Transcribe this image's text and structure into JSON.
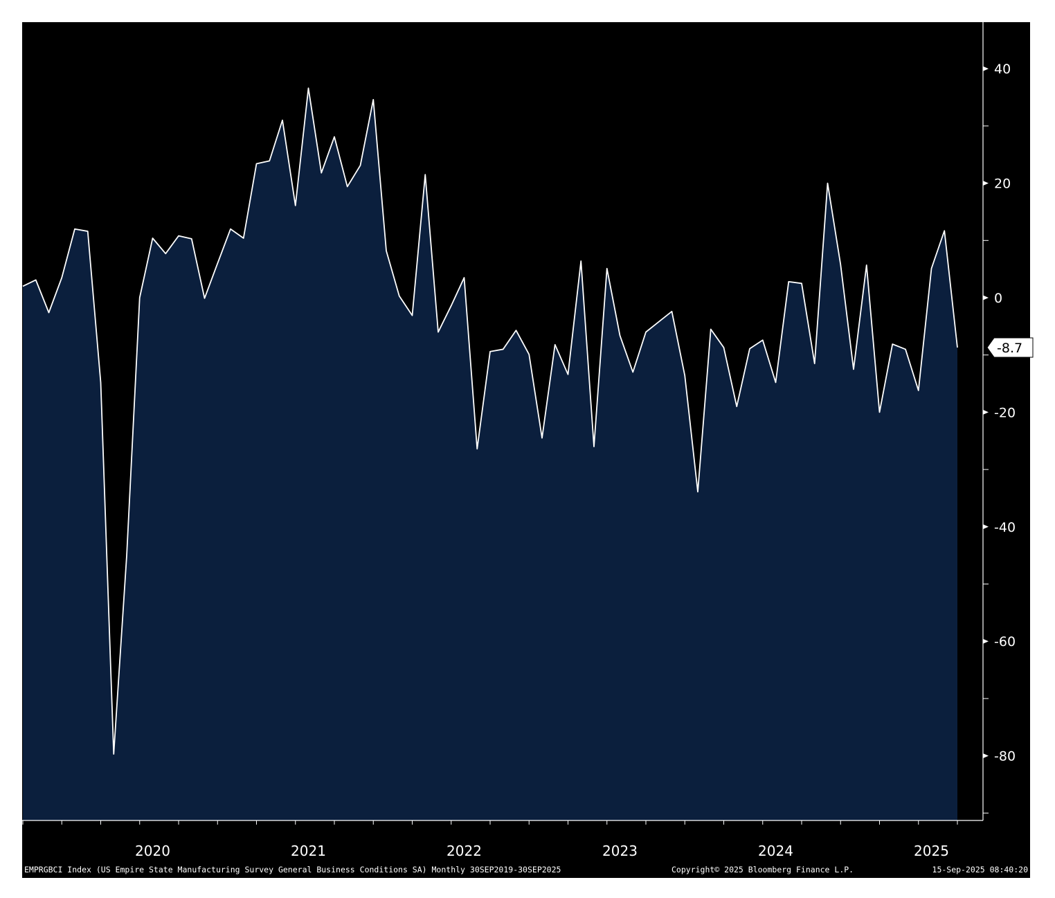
{
  "chart_data": {
    "type": "area",
    "frequency": "Monthly",
    "x_start": "2019-09",
    "x_end": "2025-09",
    "ylim": [
      -91,
      48
    ],
    "yticks": [
      40,
      20,
      0,
      -20,
      -40,
      -60,
      -80
    ],
    "year_labels": [
      "2020",
      "2021",
      "2022",
      "2023",
      "2024",
      "2025"
    ],
    "last_value_label": "-8.7",
    "grid": false,
    "legend": "none",
    "colors": {
      "background": "#000000",
      "fill": "#0b1f3d",
      "line": "#ffffff",
      "plot_border": "#ffffff"
    },
    "series": [
      {
        "values": [
          2.0,
          3.1,
          -2.6,
          3.5,
          12.0,
          11.6,
          -14.8,
          -79.7,
          -45.1,
          0.0,
          10.4,
          7.7,
          10.8,
          10.3,
          -0.1,
          6.0,
          12.0,
          10.4,
          23.4,
          23.9,
          31.0,
          16.1,
          36.6,
          21.8,
          28.1,
          19.4,
          23.1,
          34.6,
          8.2,
          0.3,
          -3.1,
          21.5,
          -6.0,
          -1.4,
          3.5,
          -26.4,
          -9.4,
          -9.0,
          -5.7,
          -9.9,
          -24.5,
          -8.2,
          -13.4,
          6.4,
          -26.0,
          5.1,
          -6.6,
          -13.0,
          -6.0,
          -4.2,
          -2.4,
          -13.6,
          -33.9,
          -5.5,
          -8.7,
          -19.0,
          -8.9,
          -7.4,
          -14.8,
          2.8,
          2.5,
          -11.5,
          20.0,
          5.8,
          -12.5,
          5.7,
          -20.0,
          -8.1,
          -9.0,
          -16.2,
          5.1,
          11.7,
          -8.7
        ]
      }
    ]
  },
  "footer": {
    "description": "EMPRGBCI Index (US Empire State Manufacturing Survey General Business Conditions SA) Monthly 30SEP2019-30SEP2025",
    "copyright": "Copyright© 2025 Bloomberg Finance L.P.",
    "timestamp": "15-Sep-2025 08:40:20"
  }
}
